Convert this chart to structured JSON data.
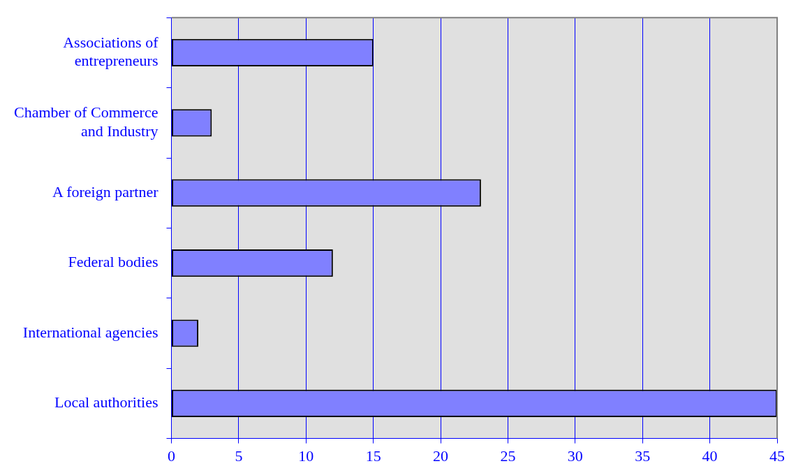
{
  "chart_data": {
    "type": "bar",
    "orientation": "horizontal",
    "categories": [
      "Associations of\nentrepreneurs",
      "Chamber of Commerce\nand Industry",
      "A foreign partner",
      "Federal bodies",
      "International agencies",
      "Local authorities"
    ],
    "values": [
      15,
      3,
      23,
      12,
      2,
      45
    ],
    "color": "#8080ff",
    "xlim": [
      0,
      45
    ],
    "xticks": [
      0,
      5,
      10,
      15,
      20,
      25,
      30,
      35,
      40,
      45
    ],
    "grid": "x",
    "legend": false
  }
}
